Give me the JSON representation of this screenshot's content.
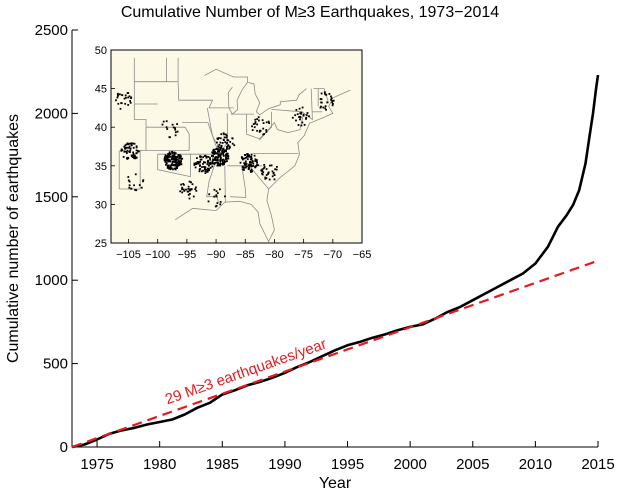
{
  "chart_data": [
    {
      "type": "line",
      "title": "Cumulative Number of M≥3 Earthquakes, 1973−2014",
      "xlabel": "Year",
      "ylabel": "Cumulative number of earthquakes",
      "xlim": [
        1973,
        2015
      ],
      "ylim": [
        0,
        2500
      ],
      "xticks": [
        1975,
        1980,
        1985,
        1990,
        1995,
        2000,
        2005,
        2010,
        2015
      ],
      "yticks": [
        0,
        500,
        1000,
        1500,
        2000,
        2500
      ],
      "grid": false,
      "series": [
        {
          "style": "solid",
          "color": "#000000",
          "points": [
            [
              1973.0,
              0
            ],
            [
              1974.0,
              15
            ],
            [
              1975.0,
              45
            ],
            [
              1976.0,
              80
            ],
            [
              1977.0,
              100
            ],
            [
              1978.0,
              115
            ],
            [
              1979.0,
              135
            ],
            [
              1980.0,
              150
            ],
            [
              1981.0,
              165
            ],
            [
              1982.0,
              195
            ],
            [
              1983.0,
              235
            ],
            [
              1984.0,
              265
            ],
            [
              1985.0,
              315
            ],
            [
              1986.0,
              340
            ],
            [
              1987.0,
              370
            ],
            [
              1988.0,
              390
            ],
            [
              1989.0,
              415
            ],
            [
              1990.0,
              445
            ],
            [
              1991.0,
              480
            ],
            [
              1992.0,
              510
            ],
            [
              1993.0,
              545
            ],
            [
              1994.0,
              580
            ],
            [
              1995.0,
              610
            ],
            [
              1996.0,
              630
            ],
            [
              1997.0,
              655
            ],
            [
              1998.0,
              675
            ],
            [
              1999.0,
              700
            ],
            [
              2000.0,
              720
            ],
            [
              2001.0,
              735
            ],
            [
              2002.0,
              770
            ],
            [
              2003.0,
              810
            ],
            [
              2004.0,
              840
            ],
            [
              2005.0,
              880
            ],
            [
              2006.0,
              920
            ],
            [
              2007.0,
              960
            ],
            [
              2008.0,
              1000
            ],
            [
              2009.0,
              1040
            ],
            [
              2010.0,
              1100
            ],
            [
              2011.0,
              1200
            ],
            [
              2011.8,
              1320
            ],
            [
              2012.5,
              1390
            ],
            [
              2013.0,
              1450
            ],
            [
              2013.5,
              1540
            ],
            [
              2014.0,
              1700
            ],
            [
              2014.3,
              1850
            ],
            [
              2014.6,
              2000
            ],
            [
              2014.85,
              2150
            ],
            [
              2015.0,
              2230
            ]
          ]
        },
        {
          "style": "dashed",
          "color": "#e8191e",
          "points": [
            [
              1973.0,
              0
            ],
            [
              2015.0,
              1117
            ]
          ]
        }
      ],
      "annotations": [
        {
          "text": "29 M≥3 earthquakes/year",
          "x": 1987.0,
          "y": 425,
          "color": "#e8191e"
        }
      ]
    },
    {
      "type": "scatter",
      "xlim": [
        -108,
        -65
      ],
      "ylim": [
        25,
        50
      ],
      "xticks": [
        -105,
        -100,
        -95,
        -90,
        -85,
        -80,
        -75,
        -70,
        -65
      ],
      "yticks": [
        25,
        30,
        35,
        40,
        45,
        50
      ],
      "background": "#fcf9e6",
      "marker_color": "#000000",
      "clusters": [
        {
          "lon": -104.8,
          "lat": 37.0,
          "count": 60
        },
        {
          "lon": -97.5,
          "lat": 35.8,
          "count": 140
        },
        {
          "lon": -92.3,
          "lat": 35.3,
          "count": 70
        },
        {
          "lon": -89.6,
          "lat": 36.3,
          "count": 120
        },
        {
          "lon": -84.5,
          "lat": 35.5,
          "count": 80
        },
        {
          "lon": -81.0,
          "lat": 34.3,
          "count": 30
        },
        {
          "lon": -88.5,
          "lat": 38.2,
          "count": 40
        },
        {
          "lon": -82.5,
          "lat": 40.3,
          "count": 25
        },
        {
          "lon": -75.5,
          "lat": 41.5,
          "count": 25
        },
        {
          "lon": -71.5,
          "lat": 43.5,
          "count": 25
        },
        {
          "lon": -95.0,
          "lat": 32.0,
          "count": 30
        },
        {
          "lon": -98.0,
          "lat": 40.0,
          "count": 15
        },
        {
          "lon": -106.0,
          "lat": 43.5,
          "count": 25
        },
        {
          "lon": -104.0,
          "lat": 33.0,
          "count": 15
        },
        {
          "lon": -90.0,
          "lat": 31.0,
          "count": 15
        }
      ]
    }
  ]
}
